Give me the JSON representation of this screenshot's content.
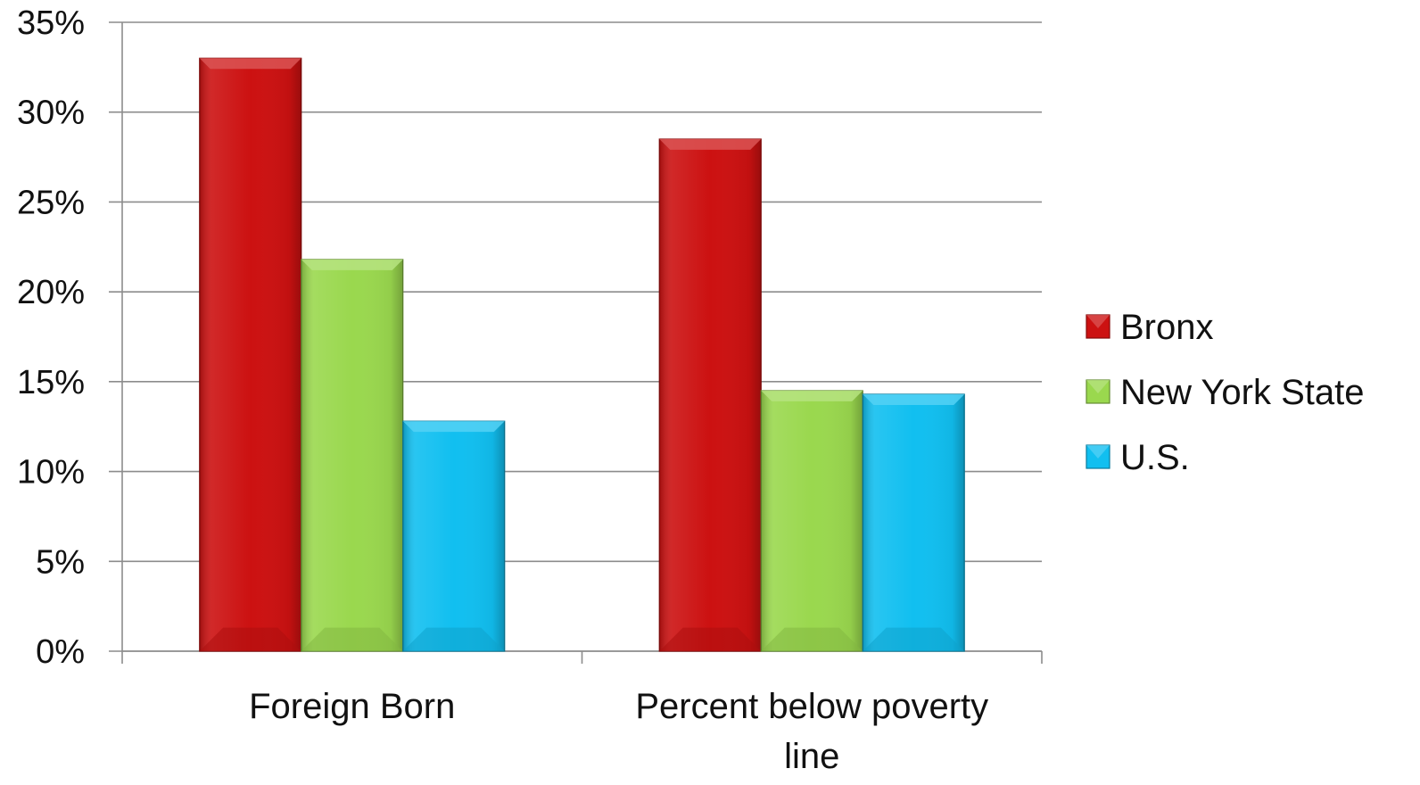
{
  "chart_data": {
    "type": "bar",
    "title": "",
    "xlabel": "",
    "ylabel": "",
    "categories": [
      "Foreign Born",
      "Percent below poverty line"
    ],
    "series": [
      {
        "name": "Bronx",
        "values": [
          33.0,
          28.5
        ],
        "color": "#cc1111"
      },
      {
        "name": "New York State",
        "values": [
          21.8,
          14.5
        ],
        "color": "#9ad84e"
      },
      {
        "name": "U.S.",
        "values": [
          12.8,
          14.3
        ],
        "color": "#11bff0"
      }
    ],
    "ylim": [
      0,
      35
    ],
    "y_ticks": [
      "0%",
      "5%",
      "10%",
      "15%",
      "20%",
      "25%",
      "30%",
      "35%"
    ],
    "y_tick_values": [
      0,
      5,
      10,
      15,
      20,
      25,
      30,
      35
    ],
    "grid": true,
    "legend_position": "right",
    "bar_style": "beveled"
  }
}
